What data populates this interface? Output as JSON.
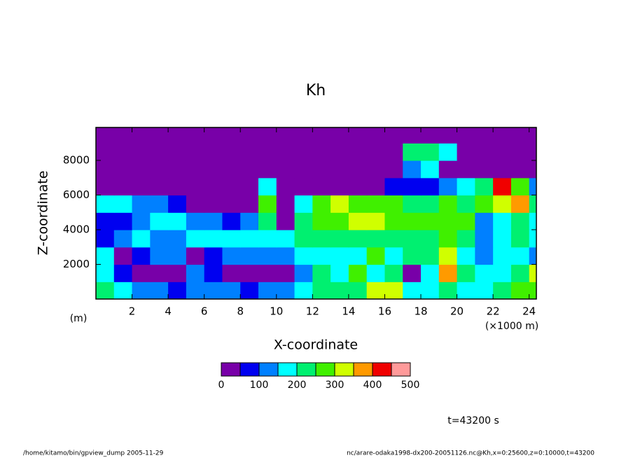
{
  "chart_data": {
    "type": "contour",
    "title": "Kh",
    "x_label": "X-coordinate",
    "y_label": "Z-coordinate",
    "x_unit": "(×1000 m)",
    "y_unit": "(m)",
    "time_label": "t=43200 s",
    "footer_left": "/home/kitamo/bin/gpview_dump  2005-11-29",
    "footer_right": "nc/arare-odaka1998-dx200-20051126.nc@Kh,x=0:25600,z=0:10000,t=43200",
    "xlim": [
      0,
      24400
    ],
    "ylim": [
      0,
      9900
    ],
    "xticks": [
      {
        "value": 2000,
        "label": "2"
      },
      {
        "value": 4000,
        "label": "4"
      },
      {
        "value": 6000,
        "label": "6"
      },
      {
        "value": 8000,
        "label": "8"
      },
      {
        "value": 10000,
        "label": "10"
      },
      {
        "value": 12000,
        "label": "12"
      },
      {
        "value": 14000,
        "label": "14"
      },
      {
        "value": 16000,
        "label": "16"
      },
      {
        "value": 18000,
        "label": "18"
      },
      {
        "value": 20000,
        "label": "20"
      },
      {
        "value": 22000,
        "label": "22"
      },
      {
        "value": 24000,
        "label": "24"
      }
    ],
    "yticks": [
      2000,
      4000,
      6000,
      8000
    ],
    "levels": [
      0,
      50,
      100,
      150,
      200,
      250,
      300,
      350,
      400,
      450,
      500
    ],
    "colors": [
      "#7800a8",
      "#0000f0",
      "#0080ff",
      "#00ffff",
      "#00f070",
      "#40f000",
      "#d0ff00",
      "#ff9a00",
      "#f00000",
      "#ff9a9a"
    ],
    "colorbar_ticks": [
      0,
      100,
      200,
      300,
      400,
      500
    ],
    "x": [
      500,
      1500,
      2500,
      3500,
      4500,
      5500,
      6500,
      7500,
      8500,
      9500,
      10500,
      11500,
      12500,
      13500,
      14500,
      15500,
      16500,
      17500,
      18500,
      19500,
      20500,
      21500,
      22500,
      23500,
      24500
    ],
    "y": [
      500,
      1500,
      2500,
      3500,
      4500,
      5500,
      6500,
      7500,
      8500,
      9500
    ],
    "z": [
      [
        220,
        160,
        140,
        120,
        80,
        100,
        120,
        110,
        90,
        110,
        130,
        170,
        210,
        200,
        200,
        320,
        300,
        160,
        190,
        230,
        180,
        170,
        220,
        250,
        290
      ],
      [
        180,
        60,
        20,
        20,
        40,
        120,
        50,
        30,
        40,
        30,
        40,
        100,
        220,
        170,
        250,
        170,
        200,
        40,
        190,
        380,
        220,
        150,
        170,
        210,
        300
      ],
      [
        160,
        40,
        60,
        120,
        100,
        40,
        60,
        100,
        130,
        120,
        130,
        150,
        170,
        190,
        180,
        250,
        180,
        200,
        240,
        340,
        170,
        120,
        160,
        180,
        130
      ],
      [
        60,
        120,
        160,
        110,
        130,
        170,
        180,
        170,
        160,
        180,
        170,
        200,
        240,
        220,
        210,
        220,
        230,
        230,
        240,
        260,
        200,
        110,
        180,
        200,
        160
      ],
      [
        80,
        60,
        130,
        180,
        150,
        120,
        100,
        80,
        120,
        200,
        40,
        220,
        270,
        250,
        300,
        320,
        280,
        260,
        260,
        280,
        250,
        130,
        150,
        200,
        180
      ],
      [
        150,
        170,
        140,
        100,
        60,
        20,
        20,
        20,
        20,
        250,
        20,
        160,
        260,
        300,
        280,
        260,
        250,
        220,
        230,
        250,
        230,
        260,
        300,
        380,
        230
      ],
      [
        20,
        20,
        20,
        20,
        20,
        20,
        20,
        20,
        20,
        160,
        20,
        20,
        20,
        20,
        20,
        20,
        60,
        60,
        80,
        120,
        150,
        200,
        420,
        260,
        120
      ],
      [
        20,
        20,
        20,
        20,
        20,
        20,
        20,
        20,
        20,
        20,
        20,
        20,
        20,
        20,
        20,
        20,
        20,
        120,
        150,
        20,
        20,
        20,
        20,
        20,
        20
      ],
      [
        20,
        20,
        20,
        20,
        20,
        20,
        20,
        20,
        20,
        20,
        20,
        20,
        20,
        20,
        20,
        20,
        20,
        220,
        230,
        150,
        20,
        20,
        20,
        20,
        20
      ],
      [
        20,
        20,
        20,
        20,
        20,
        20,
        20,
        20,
        20,
        20,
        20,
        20,
        20,
        20,
        20,
        20,
        20,
        20,
        20,
        20,
        20,
        20,
        20,
        20,
        20
      ]
    ]
  }
}
